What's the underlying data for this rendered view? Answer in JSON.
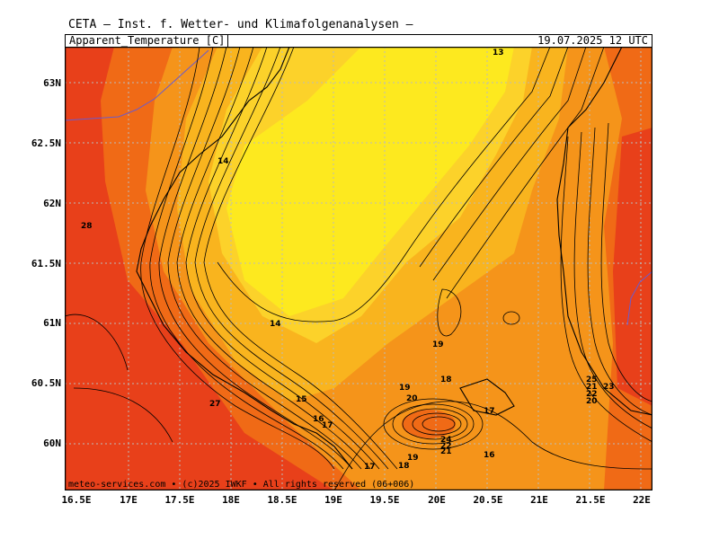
{
  "header": {
    "title": "CETA — Inst. f. Wetter- und Klimafolgenanalysen —",
    "parameter": "Apparent_Temperature [C]",
    "valid_time": "19.07.2025 12 UTC"
  },
  "footer": "meteo-services.com • (c)2025 IWKF • All rights reserved (06+006)",
  "axes": {
    "lat_labels": [
      "63N",
      "62.5N",
      "62N",
      "61.5N",
      "61N",
      "60.5N",
      "60N"
    ],
    "lon_labels": [
      "16.5E",
      "17E",
      "17.5E",
      "18E",
      "18.5E",
      "19E",
      "19.5E",
      "20E",
      "20.5E",
      "21E",
      "21.5E",
      "22E"
    ]
  },
  "colors": {
    "hot": "#e8401a",
    "warm": "#f06a16",
    "mild": "#f5941a",
    "cool": "#f9b41e",
    "cooler": "#fcd22a",
    "coolest": "#fde91f",
    "grid": "#bbbbbb",
    "coast": "#000000",
    "border": "#6a5acd"
  },
  "contour_labels": [
    {
      "t": "13"
    },
    {
      "t": "14"
    },
    {
      "t": "28"
    },
    {
      "t": "14"
    },
    {
      "t": "19"
    },
    {
      "t": "27"
    },
    {
      "t": "15"
    },
    {
      "t": "16"
    },
    {
      "t": "17"
    },
    {
      "t": "19"
    },
    {
      "t": "20"
    },
    {
      "t": "18"
    },
    {
      "t": "17"
    },
    {
      "t": "24"
    },
    {
      "t": "22"
    },
    {
      "t": "21"
    },
    {
      "t": "16"
    },
    {
      "t": "19"
    },
    {
      "t": "18"
    },
    {
      "t": "17"
    },
    {
      "t": "25"
    },
    {
      "t": "23"
    },
    {
      "t": "21"
    },
    {
      "t": "22"
    },
    {
      "t": "20"
    }
  ]
}
